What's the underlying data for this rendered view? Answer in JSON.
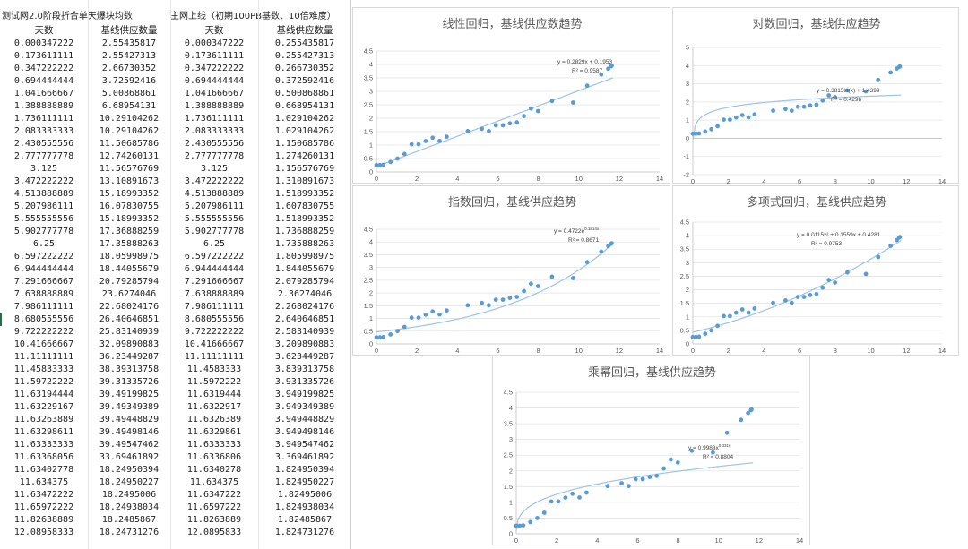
{
  "sheet": {
    "group_headers": [
      "测试网2.0阶段折合单天爆块均数",
      "主网上线（初期100PB基数、10倍难度）"
    ],
    "column_headers": [
      "天数",
      "基线供应数量",
      "天数",
      "基线供应数量"
    ],
    "rows": [
      [
        "0.000347222",
        "2.55435817",
        "0.000347222",
        "0.255435817"
      ],
      [
        "0.173611111",
        "2.55427313",
        "0.173611111",
        "0.255427313"
      ],
      [
        "0.347222222",
        "2.66730352",
        "0.347222222",
        "0.266730352"
      ],
      [
        "0.694444444",
        "3.72592416",
        "0.694444444",
        "0.372592416"
      ],
      [
        "1.041666667",
        "5.00868861",
        "1.041666667",
        "0.500868861"
      ],
      [
        "1.388888889",
        "6.68954131",
        "1.388888889",
        "0.668954131"
      ],
      [
        "1.736111111",
        "10.29104262",
        "1.736111111",
        "1.029104262"
      ],
      [
        "2.083333333",
        "10.29104262",
        "2.083333333",
        "1.029104262"
      ],
      [
        "2.430555556",
        "11.50685786",
        "2.430555556",
        "1.150685786"
      ],
      [
        "2.777777778",
        "12.74260131",
        "2.777777778",
        "1.274260131"
      ],
      [
        "3.125",
        "11.56576769",
        "3.125",
        "1.156576769"
      ],
      [
        "3.472222222",
        "13.10891673",
        "3.472222222",
        "1.310891673"
      ],
      [
        "4.513888889",
        "15.18993352",
        "4.513888889",
        "1.518993352"
      ],
      [
        "5.207986111",
        "16.07830755",
        "5.207986111",
        "1.607830755"
      ],
      [
        "5.555555556",
        "15.18993352",
        "5.555555556",
        "1.518993352"
      ],
      [
        "5.902777778",
        "17.36888259",
        "5.902777778",
        "1.736888259"
      ],
      [
        "6.25",
        "17.35888263",
        "6.25",
        "1.735888263"
      ],
      [
        "6.597222222",
        "18.05998975",
        "6.597222222",
        "1.805998975"
      ],
      [
        "6.944444444",
        "18.44055679",
        "6.944444444",
        "1.844055679"
      ],
      [
        "7.291666667",
        "20.79285794",
        "7.291666667",
        "2.079285794"
      ],
      [
        "7.638888889",
        "23.6274046",
        "7.638888889",
        "2.36274046"
      ],
      [
        "7.986111111",
        "22.68024176",
        "7.986111111",
        "2.268024176"
      ],
      [
        "8.680555556",
        "26.40646851",
        "8.680555556",
        "2.640646851"
      ],
      [
        "9.722222222",
        "25.83140939",
        "9.722222222",
        "2.583140939"
      ],
      [
        "10.41666667",
        "32.09890883",
        "10.41666667",
        "3.209890883"
      ],
      [
        "11.11111111",
        "36.23449287",
        "11.11111111",
        "3.623449287"
      ],
      [
        "11.45833333",
        "38.39313758",
        "11.4583333",
        "3.839313758"
      ],
      [
        "11.59722222",
        "39.31335726",
        "11.5972222",
        "3.931335726"
      ],
      [
        "11.63194444",
        "39.49199825",
        "11.6319444",
        "3.949199825"
      ],
      [
        "11.63229167",
        "39.49349389",
        "11.6322917",
        "3.949349389"
      ],
      [
        "11.63263889",
        "39.49448829",
        "11.6326389",
        "3.949448829"
      ],
      [
        "11.63298611",
        "39.49498146",
        "11.6329861",
        "3.949498146"
      ],
      [
        "11.63333333",
        "39.49547462",
        "11.6333333",
        "3.949547462"
      ],
      [
        "11.63368056",
        "33.69461892",
        "11.6336806",
        "3.369461892"
      ],
      [
        "11.63402778",
        "18.24950394",
        "11.6340278",
        "1.824950394"
      ],
      [
        "11.634375",
        "18.24950227",
        "11.634375",
        "1.824950227"
      ],
      [
        "11.63472222",
        "18.2495006",
        "11.6347222",
        "1.82495006"
      ],
      [
        "11.65972222",
        "18.24938034",
        "11.6597222",
        "1.824938034"
      ],
      [
        "11.82638889",
        "18.2485867",
        "11.8263889",
        "1.82485867"
      ],
      [
        "12.08958333",
        "18.24731276",
        "12.0895833",
        "1.824731276"
      ]
    ]
  },
  "chart_data": [
    {
      "type": "scatter",
      "title": "线性回归，基线供应数趋势",
      "trend": "linear",
      "equation": "y = 0.2829x + 0.1953",
      "r2": "R² = 0.9587",
      "xlim": [
        0,
        14
      ],
      "ylim": [
        0,
        4.5
      ],
      "xticks": [
        0,
        2,
        4,
        6,
        8,
        10,
        12,
        14
      ],
      "yticks": [
        0,
        0.5,
        1,
        1.5,
        2,
        2.5,
        3,
        3.5,
        4,
        4.5
      ],
      "x": [
        0.0003,
        0.1736,
        0.3472,
        0.6944,
        1.0417,
        1.3889,
        1.7361,
        2.0833,
        2.4306,
        2.7778,
        3.125,
        3.4722,
        4.5139,
        5.208,
        5.5556,
        5.9028,
        6.25,
        6.5972,
        6.9444,
        7.2917,
        7.6389,
        7.9861,
        8.6806,
        9.7222,
        10.4167,
        11.1111,
        11.4583,
        11.5972,
        11.6319
      ],
      "y": [
        0.255,
        0.255,
        0.267,
        0.373,
        0.501,
        0.669,
        1.029,
        1.029,
        1.151,
        1.274,
        1.157,
        1.311,
        1.519,
        1.608,
        1.519,
        1.737,
        1.736,
        1.806,
        1.844,
        2.079,
        2.363,
        2.268,
        2.641,
        2.583,
        3.21,
        3.623,
        3.839,
        3.931,
        3.949
      ]
    },
    {
      "type": "scatter",
      "title": "对数回归，基线供应趋势",
      "trend": "log",
      "equation": "y = 0.3815ln(x) + 1.4399",
      "r2": "R² = 0.4296",
      "xlim": [
        0,
        14
      ],
      "ylim": [
        -2,
        5
      ],
      "xticks": [
        0,
        2,
        4,
        6,
        8,
        10,
        12,
        14
      ],
      "yticks": [
        -2,
        -1,
        0,
        1,
        2,
        3,
        4,
        5
      ],
      "x": [
        0.0003,
        0.1736,
        0.3472,
        0.6944,
        1.0417,
        1.3889,
        1.7361,
        2.0833,
        2.4306,
        2.7778,
        3.125,
        3.4722,
        4.5139,
        5.208,
        5.5556,
        5.9028,
        6.25,
        6.5972,
        6.9444,
        7.2917,
        7.6389,
        7.9861,
        8.6806,
        9.7222,
        10.4167,
        11.1111,
        11.4583,
        11.5972,
        11.6319
      ],
      "y": [
        0.255,
        0.255,
        0.267,
        0.373,
        0.501,
        0.669,
        1.029,
        1.029,
        1.151,
        1.274,
        1.157,
        1.311,
        1.519,
        1.608,
        1.519,
        1.737,
        1.736,
        1.806,
        1.844,
        2.079,
        2.363,
        2.268,
        2.641,
        2.583,
        3.21,
        3.623,
        3.839,
        3.931,
        3.949
      ]
    },
    {
      "type": "scatter",
      "title": "指数回归，基线供应趋势",
      "trend": "exp",
      "equation": "y = 0.4722e",
      "equation_sup": "0.1814x",
      "r2": "R² = 0.8671",
      "xlim": [
        0,
        14
      ],
      "ylim": [
        0,
        4.5
      ],
      "xticks": [
        0,
        2,
        4,
        6,
        8,
        10,
        12,
        14
      ],
      "yticks": [
        0,
        0.5,
        1,
        1.5,
        2,
        2.5,
        3,
        3.5,
        4,
        4.5
      ],
      "x": [
        0.0003,
        0.1736,
        0.3472,
        0.6944,
        1.0417,
        1.3889,
        1.7361,
        2.0833,
        2.4306,
        2.7778,
        3.125,
        3.4722,
        4.5139,
        5.208,
        5.5556,
        5.9028,
        6.25,
        6.5972,
        6.9444,
        7.2917,
        7.6389,
        7.9861,
        8.6806,
        9.7222,
        10.4167,
        11.1111,
        11.4583,
        11.5972,
        11.6319
      ],
      "y": [
        0.255,
        0.255,
        0.267,
        0.373,
        0.501,
        0.669,
        1.029,
        1.029,
        1.151,
        1.274,
        1.157,
        1.311,
        1.519,
        1.608,
        1.519,
        1.737,
        1.736,
        1.806,
        1.844,
        2.079,
        2.363,
        2.268,
        2.641,
        2.583,
        3.21,
        3.623,
        3.839,
        3.931,
        3.949
      ]
    },
    {
      "type": "scatter",
      "title": "多项式回归，基线供应趋势",
      "trend": "poly",
      "equation": "y = 0.0115x² + 0.1559x + 0.4281",
      "r2": "R² = 0.9753",
      "xlim": [
        0,
        14
      ],
      "ylim": [
        0,
        4.5
      ],
      "xticks": [
        0,
        2,
        4,
        6,
        8,
        10,
        12,
        14
      ],
      "yticks": [
        0,
        0.5,
        1,
        1.5,
        2,
        2.5,
        3,
        3.5,
        4,
        4.5
      ],
      "x": [
        0.0003,
        0.1736,
        0.3472,
        0.6944,
        1.0417,
        1.3889,
        1.7361,
        2.0833,
        2.4306,
        2.7778,
        3.125,
        3.4722,
        4.5139,
        5.208,
        5.5556,
        5.9028,
        6.25,
        6.5972,
        6.9444,
        7.2917,
        7.6389,
        7.9861,
        8.6806,
        9.7222,
        10.4167,
        11.1111,
        11.4583,
        11.5972,
        11.6319
      ],
      "y": [
        0.255,
        0.255,
        0.267,
        0.373,
        0.501,
        0.669,
        1.029,
        1.029,
        1.151,
        1.274,
        1.157,
        1.311,
        1.519,
        1.608,
        1.519,
        1.737,
        1.736,
        1.806,
        1.844,
        2.079,
        2.363,
        2.268,
        2.641,
        2.583,
        3.21,
        3.623,
        3.839,
        3.931,
        3.949
      ]
    },
    {
      "type": "scatter",
      "title": "乘幂回归，基线供应趋势",
      "trend": "power",
      "equation": "y = 0.9983x",
      "equation_sup": "0.3316",
      "r2": "R² = 0.8804",
      "xlim": [
        0,
        14
      ],
      "ylim": [
        0,
        4.5
      ],
      "xticks": [
        0,
        2,
        4,
        6,
        8,
        10,
        12,
        14
      ],
      "yticks": [
        0,
        0.5,
        1,
        1.5,
        2,
        2.5,
        3,
        3.5,
        4,
        4.5
      ],
      "x": [
        0.0003,
        0.1736,
        0.3472,
        0.6944,
        1.0417,
        1.3889,
        1.7361,
        2.0833,
        2.4306,
        2.7778,
        3.125,
        3.4722,
        4.5139,
        5.208,
        5.5556,
        5.9028,
        6.25,
        6.5972,
        6.9444,
        7.2917,
        7.6389,
        7.9861,
        8.6806,
        9.7222,
        10.4167,
        11.1111,
        11.4583,
        11.5972,
        11.6319
      ],
      "y": [
        0.255,
        0.255,
        0.267,
        0.373,
        0.501,
        0.669,
        1.029,
        1.029,
        1.151,
        1.274,
        1.157,
        1.311,
        1.519,
        1.608,
        1.519,
        1.737,
        1.736,
        1.806,
        1.844,
        2.079,
        2.363,
        2.268,
        2.641,
        2.583,
        3.21,
        3.623,
        3.839,
        3.931,
        3.949
      ]
    }
  ]
}
